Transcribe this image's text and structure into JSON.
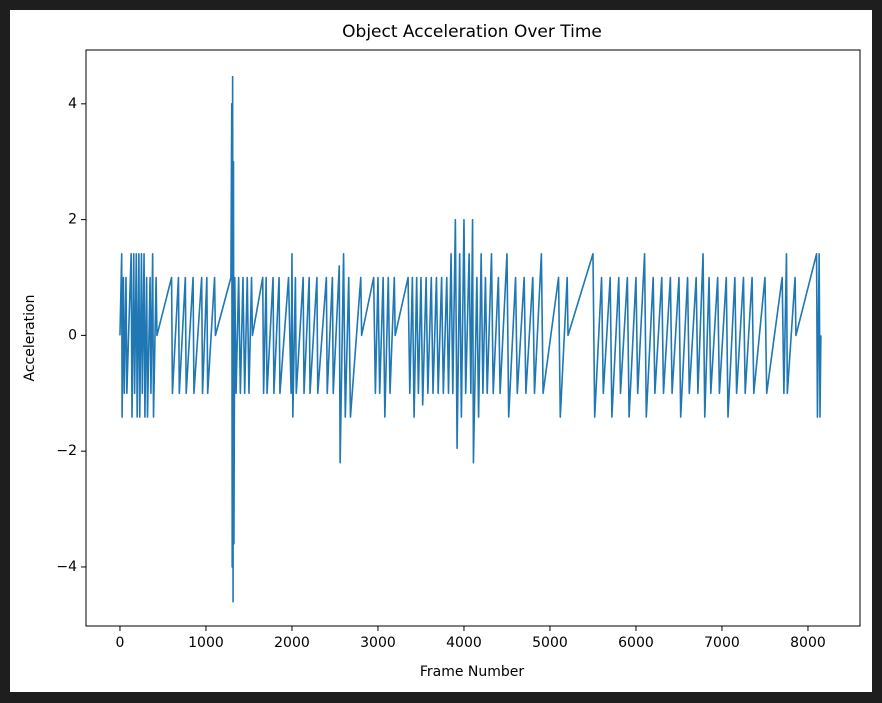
{
  "chart_data": {
    "type": "line",
    "title": "Object Acceleration Over Time",
    "x_label": "Frame Number",
    "y_label": "Acceleration",
    "xlim": [
      -395,
      8605
    ],
    "ylim": [
      -5.02,
      4.93
    ],
    "xticks": [
      0,
      1000,
      2000,
      3000,
      4000,
      5000,
      6000,
      7000,
      8000
    ],
    "yticks": [
      {
        "value": -4,
        "label": "−4"
      },
      {
        "value": -2,
        "label": "−2"
      },
      0,
      2,
      4
    ],
    "grid": false,
    "series": [
      {
        "color": "#1f77b4",
        "x": [
          0,
          20,
          25,
          40,
          50,
          70,
          80,
          100,
          130,
          140,
          160,
          170,
          190,
          200,
          220,
          230,
          250,
          260,
          280,
          290,
          310,
          320,
          350,
          360,
          380,
          390,
          420,
          430,
          600,
          610,
          680,
          690,
          760,
          770,
          850,
          860,
          950,
          960,
          1010,
          1020,
          1100,
          1110,
          1290,
          1300,
          1305,
          1310,
          1315,
          1320,
          1325,
          1335,
          1350,
          1380,
          1400,
          1430,
          1450,
          1480,
          1500,
          1530,
          1540,
          1660,
          1670,
          1700,
          1710,
          1780,
          1790,
          1850,
          1860,
          1960,
          1990,
          2000,
          2010,
          2040,
          2050,
          2130,
          2140,
          2200,
          2210,
          2290,
          2300,
          2400,
          2410,
          2470,
          2480,
          2550,
          2560,
          2600,
          2620,
          2660,
          2680,
          2800,
          2810,
          2950,
          2970,
          3000,
          3020,
          3060,
          3080,
          3120,
          3140,
          3190,
          3200,
          3350,
          3370,
          3400,
          3420,
          3450,
          3470,
          3500,
          3520,
          3560,
          3580,
          3620,
          3640,
          3680,
          3700,
          3740,
          3760,
          3800,
          3820,
          3850,
          3870,
          3900,
          3920,
          3950,
          3970,
          4000,
          4020,
          4060,
          4080,
          4100,
          4110,
          4150,
          4170,
          4200,
          4220,
          4250,
          4270,
          4320,
          4340,
          4400,
          4420,
          4500,
          4520,
          4600,
          4620,
          4700,
          4720,
          4800,
          4820,
          4900,
          4920,
          5100,
          5120,
          5200,
          5210,
          5500,
          5520,
          5600,
          5620,
          5700,
          5720,
          5800,
          5820,
          5900,
          5920,
          6000,
          6020,
          6100,
          6120,
          6200,
          6220,
          6300,
          6320,
          6400,
          6420,
          6500,
          6520,
          6600,
          6620,
          6700,
          6720,
          6780,
          6800,
          6850,
          6870,
          6950,
          6970,
          7050,
          7070,
          7150,
          7170,
          7250,
          7270,
          7350,
          7370,
          7500,
          7520,
          7700,
          7720,
          7750,
          7760,
          7850,
          7860,
          8100,
          8110,
          8130,
          8140,
          8150
        ],
        "values": [
          0,
          1.41,
          -1.41,
          1,
          -1,
          1,
          -1,
          0,
          1.41,
          -1.41,
          1.41,
          -1,
          1.41,
          -1.41,
          1.41,
          -1.41,
          1.41,
          -1,
          1.41,
          -1.41,
          1,
          -1.41,
          1,
          -1,
          1.41,
          -1.41,
          1,
          0,
          1,
          -1,
          1,
          -1,
          1,
          -1,
          1,
          -1,
          1,
          -1,
          1,
          -1,
          1,
          0,
          1,
          4,
          -4,
          4.47,
          -4.6,
          3,
          -3.6,
          1,
          -1,
          1,
          -1,
          1,
          -1,
          1,
          -1,
          1,
          0,
          1,
          -1,
          1,
          -1,
          1,
          -1,
          1,
          -1,
          1,
          -1,
          1.41,
          -1.41,
          1,
          -1,
          1,
          -1,
          1,
          -1,
          1,
          -1,
          1,
          -1,
          1,
          -1,
          1.2,
          -2.2,
          1.41,
          -1.41,
          1,
          -1.41,
          1,
          0,
          1,
          -1,
          1,
          -1,
          1,
          -1.41,
          1,
          -1,
          1,
          0,
          1,
          -1,
          1,
          -1.41,
          1,
          -1,
          1,
          -1.2,
          1,
          -1,
          1,
          -1,
          1,
          -1,
          1,
          -1,
          1,
          -1,
          1.41,
          -1,
          2,
          -1.95,
          1.41,
          -1.41,
          2,
          -1,
          1.41,
          -1,
          2,
          -2.2,
          1,
          -1.41,
          1.41,
          -1,
          1,
          -1,
          1.41,
          -1,
          1,
          -1,
          1.41,
          -1.41,
          1,
          -1,
          1,
          -1,
          1,
          -1,
          1.41,
          -1,
          1,
          -1.41,
          1,
          0,
          1.41,
          -1.41,
          1,
          -1,
          1,
          -1.41,
          1,
          -1,
          1,
          -1.41,
          1,
          -1,
          1.41,
          -1.41,
          1,
          -1,
          1,
          -1,
          1,
          -1,
          1,
          -1.41,
          1,
          -1,
          1,
          -1,
          1.41,
          -1.41,
          1,
          -1,
          1,
          -1,
          1,
          -1.41,
          1,
          -1,
          1,
          -1,
          1,
          -1,
          1,
          -1,
          1,
          -1,
          1.41,
          -1,
          1,
          0,
          1.41,
          -1.41,
          1.41,
          -1.41,
          0
        ]
      }
    ]
  }
}
